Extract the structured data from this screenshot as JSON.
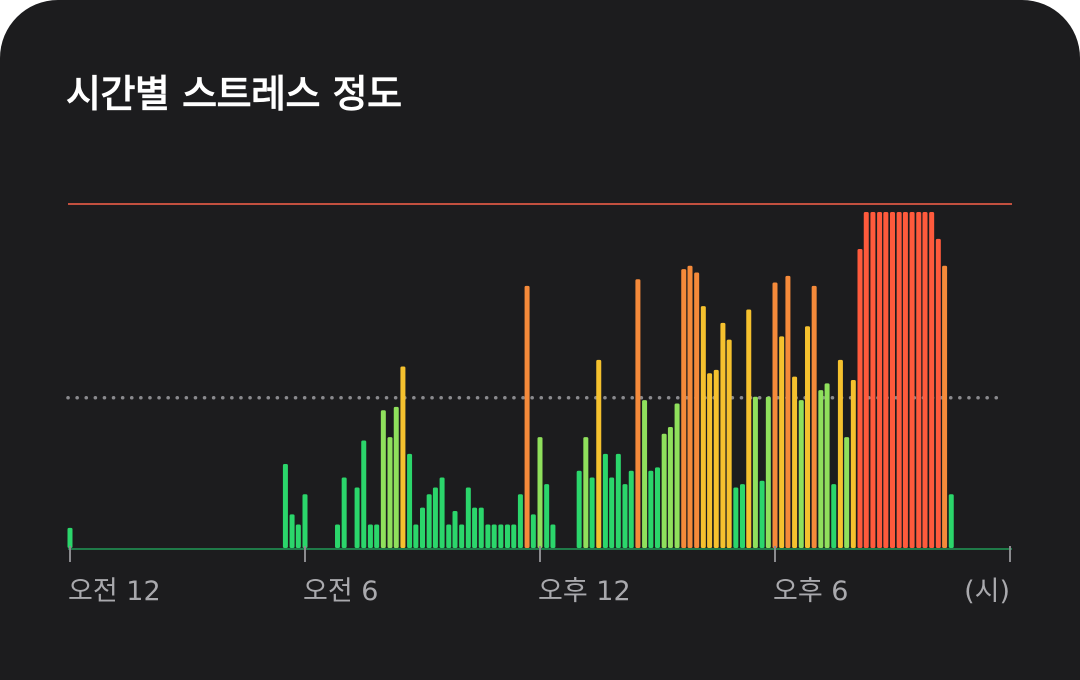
{
  "title": "시간별 스트레스 정도",
  "unit_label": "(시)",
  "colors": {
    "background": "#1c1c1e",
    "max_line": "#c2503f",
    "avg_line": "#8a8a8e",
    "baseline": "#1f7a48",
    "low": "#2bd66b",
    "mid_low": "#8fe05c",
    "mid": "#f5c12e",
    "mid_high": "#f58a3a",
    "high": "#ff5a3c"
  },
  "chart_data": {
    "type": "bar",
    "title": "시간별 스트레스 정도",
    "xlabel": "(시)",
    "ylabel": "",
    "xlim": [
      0,
      24
    ],
    "ylim": [
      0,
      100
    ],
    "grid": false,
    "legend": "none",
    "x_ticks": [
      {
        "x": 0,
        "label": "오전 12"
      },
      {
        "x": 6,
        "label": "오전 6"
      },
      {
        "x": 12,
        "label": "오후 12"
      },
      {
        "x": 18,
        "label": "오후 6"
      }
    ],
    "reference_lines": [
      {
        "kind": "max",
        "value": 100,
        "style": "solid"
      },
      {
        "kind": "average",
        "value": 45,
        "style": "dotted"
      }
    ],
    "bars": [
      {
        "x": 0.0,
        "y": 6
      },
      {
        "x": 5.5,
        "y": 25
      },
      {
        "x": 5.67,
        "y": 10
      },
      {
        "x": 5.83,
        "y": 7
      },
      {
        "x": 6.0,
        "y": 16
      },
      {
        "x": 6.83,
        "y": 7
      },
      {
        "x": 7.0,
        "y": 21
      },
      {
        "x": 7.33,
        "y": 18
      },
      {
        "x": 7.5,
        "y": 32
      },
      {
        "x": 7.67,
        "y": 7
      },
      {
        "x": 7.83,
        "y": 7
      },
      {
        "x": 8.0,
        "y": 41
      },
      {
        "x": 8.17,
        "y": 33
      },
      {
        "x": 8.33,
        "y": 42
      },
      {
        "x": 8.5,
        "y": 54
      },
      {
        "x": 8.67,
        "y": 28
      },
      {
        "x": 8.83,
        "y": 7
      },
      {
        "x": 9.0,
        "y": 12
      },
      {
        "x": 9.17,
        "y": 16
      },
      {
        "x": 9.33,
        "y": 18
      },
      {
        "x": 9.5,
        "y": 21
      },
      {
        "x": 9.67,
        "y": 7
      },
      {
        "x": 9.83,
        "y": 11
      },
      {
        "x": 10.0,
        "y": 7
      },
      {
        "x": 10.17,
        "y": 18
      },
      {
        "x": 10.33,
        "y": 12
      },
      {
        "x": 10.5,
        "y": 12
      },
      {
        "x": 10.67,
        "y": 7
      },
      {
        "x": 10.83,
        "y": 7
      },
      {
        "x": 11.0,
        "y": 7
      },
      {
        "x": 11.17,
        "y": 7
      },
      {
        "x": 11.33,
        "y": 7
      },
      {
        "x": 11.5,
        "y": 16
      },
      {
        "x": 11.67,
        "y": 78
      },
      {
        "x": 11.83,
        "y": 10
      },
      {
        "x": 12.0,
        "y": 33
      },
      {
        "x": 12.17,
        "y": 19
      },
      {
        "x": 12.33,
        "y": 7
      },
      {
        "x": 13.0,
        "y": 23
      },
      {
        "x": 13.17,
        "y": 33
      },
      {
        "x": 13.33,
        "y": 21
      },
      {
        "x": 13.5,
        "y": 56
      },
      {
        "x": 13.67,
        "y": 28
      },
      {
        "x": 13.83,
        "y": 21
      },
      {
        "x": 14.0,
        "y": 28
      },
      {
        "x": 14.17,
        "y": 19
      },
      {
        "x": 14.33,
        "y": 23
      },
      {
        "x": 14.5,
        "y": 80
      },
      {
        "x": 14.67,
        "y": 44
      },
      {
        "x": 14.83,
        "y": 23
      },
      {
        "x": 15.0,
        "y": 24
      },
      {
        "x": 15.17,
        "y": 34
      },
      {
        "x": 15.33,
        "y": 36
      },
      {
        "x": 15.5,
        "y": 43
      },
      {
        "x": 15.67,
        "y": 83
      },
      {
        "x": 15.83,
        "y": 84
      },
      {
        "x": 16.0,
        "y": 82
      },
      {
        "x": 16.17,
        "y": 72
      },
      {
        "x": 16.33,
        "y": 52
      },
      {
        "x": 16.5,
        "y": 53
      },
      {
        "x": 16.67,
        "y": 67
      },
      {
        "x": 16.83,
        "y": 62
      },
      {
        "x": 17.0,
        "y": 18
      },
      {
        "x": 17.17,
        "y": 19
      },
      {
        "x": 17.33,
        "y": 71
      },
      {
        "x": 17.5,
        "y": 45
      },
      {
        "x": 17.67,
        "y": 20
      },
      {
        "x": 17.83,
        "y": 45
      },
      {
        "x": 18.0,
        "y": 79
      },
      {
        "x": 18.17,
        "y": 63
      },
      {
        "x": 18.33,
        "y": 81
      },
      {
        "x": 18.5,
        "y": 51
      },
      {
        "x": 18.67,
        "y": 44
      },
      {
        "x": 18.83,
        "y": 66
      },
      {
        "x": 19.0,
        "y": 78
      },
      {
        "x": 19.17,
        "y": 47
      },
      {
        "x": 19.33,
        "y": 49
      },
      {
        "x": 19.5,
        "y": 19
      },
      {
        "x": 19.67,
        "y": 56
      },
      {
        "x": 19.83,
        "y": 33
      },
      {
        "x": 20.0,
        "y": 50
      },
      {
        "x": 20.17,
        "y": 89
      },
      {
        "x": 20.33,
        "y": 100
      },
      {
        "x": 20.5,
        "y": 100
      },
      {
        "x": 20.67,
        "y": 100
      },
      {
        "x": 20.83,
        "y": 100
      },
      {
        "x": 21.0,
        "y": 100
      },
      {
        "x": 21.17,
        "y": 100
      },
      {
        "x": 21.33,
        "y": 100
      },
      {
        "x": 21.5,
        "y": 100
      },
      {
        "x": 21.67,
        "y": 100
      },
      {
        "x": 21.83,
        "y": 100
      },
      {
        "x": 22.0,
        "y": 100
      },
      {
        "x": 22.17,
        "y": 92
      },
      {
        "x": 22.33,
        "y": 84
      },
      {
        "x": 22.5,
        "y": 16
      }
    ]
  }
}
